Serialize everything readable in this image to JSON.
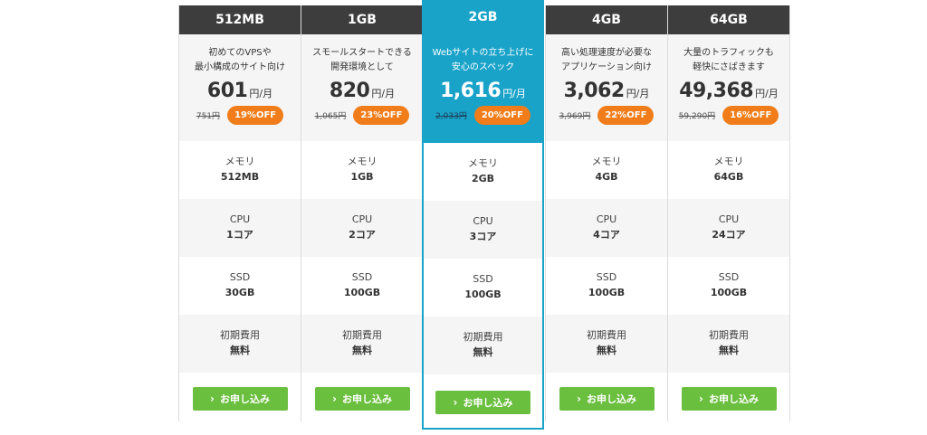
{
  "plans": [
    {
      "name": "512MB",
      "desc1": "初めてのVPSや",
      "desc2": "最小構成のサイト向け",
      "price": "601",
      "unit": "円/月",
      "original": "751円",
      "discount": "19%OFF",
      "memory": "512MB",
      "cpu": "1コア",
      "ssd": "30GB",
      "fee": "無料",
      "cta": "お申し込み"
    },
    {
      "name": "1GB",
      "desc1": "スモールスタートできる",
      "desc2": "開発環境として",
      "price": "820",
      "unit": "円/月",
      "original": "1,065円",
      "discount": "23%OFF",
      "memory": "1GB",
      "cpu": "2コア",
      "ssd": "100GB",
      "fee": "無料",
      "cta": "お申し込み"
    },
    {
      "name": "2GB",
      "desc1": "Webサイトの立ち上げに",
      "desc2": "安心のスペック",
      "price": "1,616",
      "unit": "円/月",
      "original": "2,033円",
      "discount": "20%OFF",
      "memory": "2GB",
      "cpu": "3コア",
      "ssd": "100GB",
      "fee": "無料",
      "cta": "お申し込み"
    },
    {
      "name": "4GB",
      "desc1": "高い処理速度が必要な",
      "desc2": "アプリケーション向け",
      "price": "3,062",
      "unit": "円/月",
      "original": "3,969円",
      "discount": "22%OFF",
      "memory": "4GB",
      "cpu": "4コア",
      "ssd": "100GB",
      "fee": "無料",
      "cta": "お申し込み"
    },
    {
      "name": "64GB",
      "desc1": "大量のトラフィックも",
      "desc2": "軽快にさばきます",
      "price": "49,368",
      "unit": "円/月",
      "original": "59,290円",
      "discount": "16%OFF",
      "memory": "64GB",
      "cpu": "24コア",
      "ssd": "100GB",
      "fee": "無料",
      "cta": "お申し込み"
    }
  ],
  "labels": {
    "memory": "メモリ",
    "cpu": "CPU",
    "ssd": "SSD",
    "fee": "初期費用"
  },
  "colors": {
    "header": "#3d3d3d",
    "featured": "#1aa3c9",
    "badge": "#f07d1a",
    "cta": "#6bbf3f"
  },
  "icons": {
    "cta": "chevron-right-icon"
  }
}
